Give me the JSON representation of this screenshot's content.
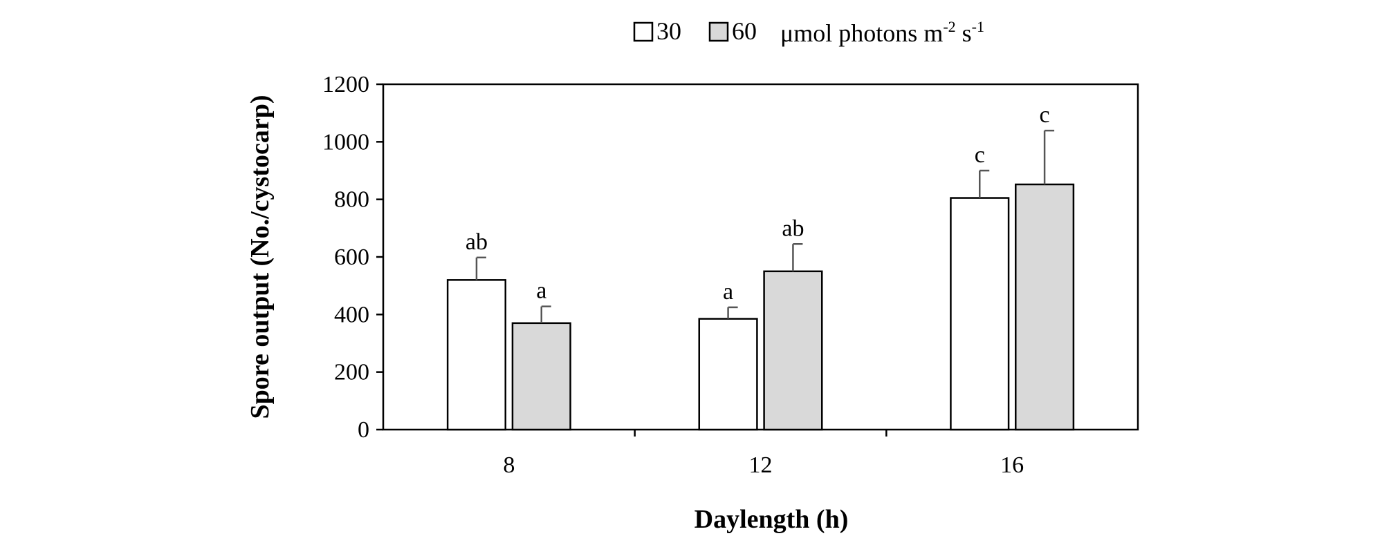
{
  "chart_data": {
    "type": "bar",
    "categories": [
      "8",
      "12",
      "16"
    ],
    "series": [
      {
        "name": "30",
        "color": "#ffffff",
        "values": [
          520,
          385,
          805
        ],
        "errors": [
          78,
          40,
          95
        ],
        "labels": [
          "ab",
          "a",
          "c"
        ]
      },
      {
        "name": "60",
        "color": "#d9d9d9",
        "values": [
          370,
          550,
          852
        ],
        "errors": [
          58,
          95,
          187
        ],
        "labels": [
          "a",
          "ab",
          "c"
        ]
      }
    ],
    "legend_unit": {
      "text1": "μmol photons m",
      "sup1": "-2",
      "text2": " s",
      "sup2": "-1"
    },
    "legend_position": "top",
    "xlabel": "Daylength (h)",
    "ylabel": "Spore output (No./cystocarp)",
    "ylim": [
      0,
      1200
    ],
    "yticks": [
      0,
      200,
      400,
      600,
      800,
      1000,
      1200
    ],
    "grid": false
  }
}
